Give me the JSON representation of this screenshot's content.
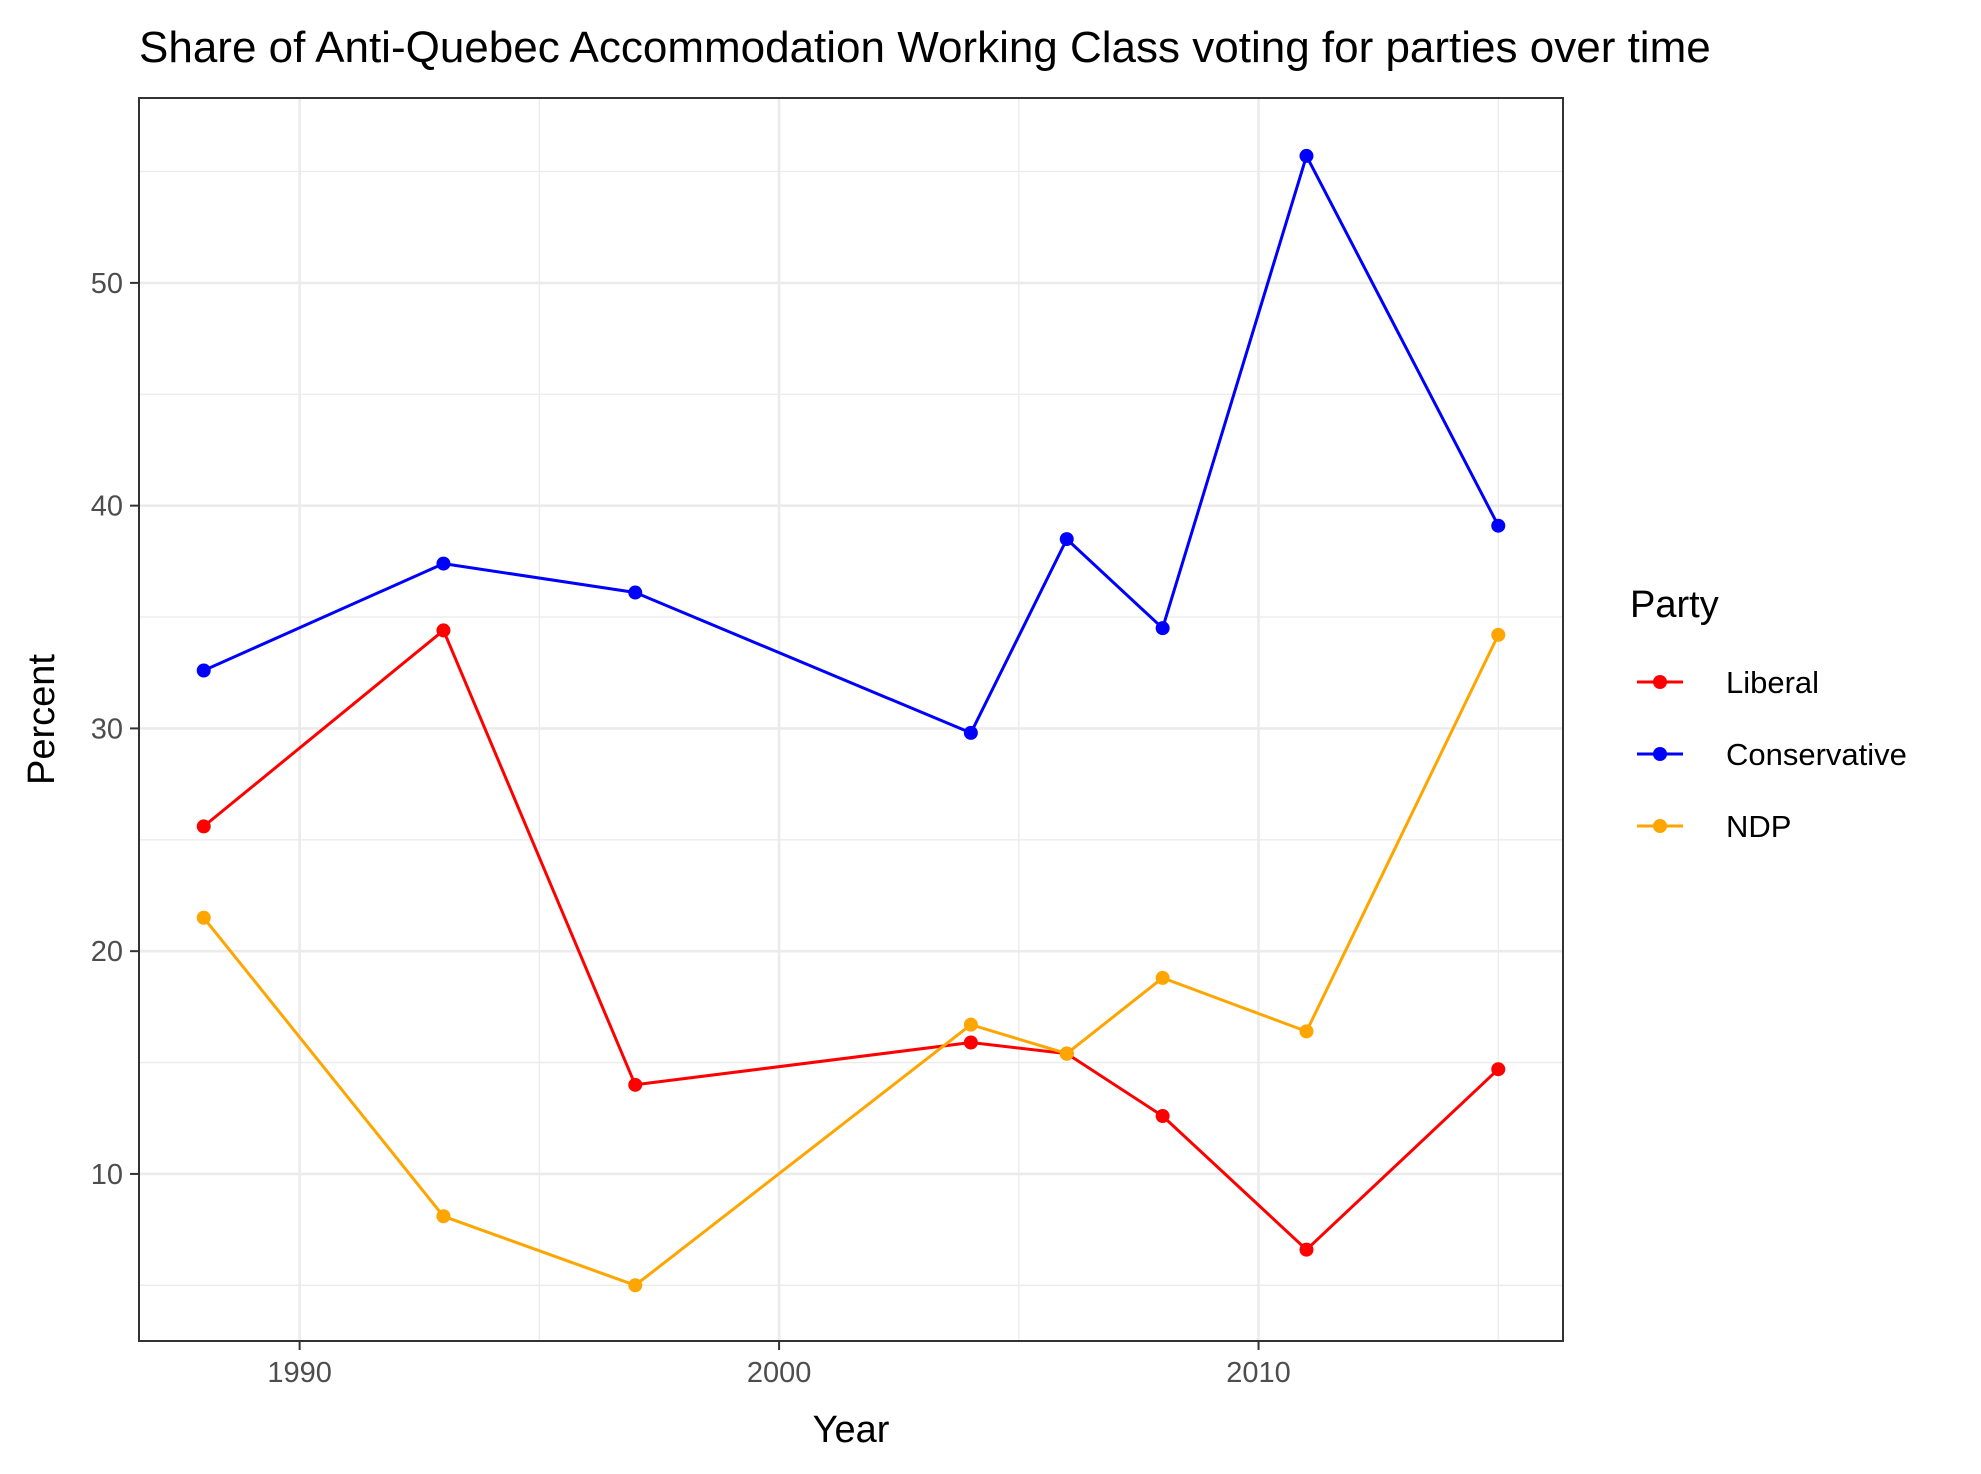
{
  "chart_data": {
    "type": "line",
    "title": "Share of Anti-Quebec Accommodation Working Class voting for parties over time",
    "xlabel": "Year",
    "ylabel": "Percent",
    "x": [
      1988,
      1993,
      1997,
      2004,
      2006,
      2008,
      2011,
      2015
    ],
    "xlim": [
      1986.65,
      2016.35
    ],
    "ylim": [
      2.5,
      58.3
    ],
    "x_ticks": [
      1990,
      2000,
      2010
    ],
    "x_tick_labels": [
      "1990",
      "2000",
      "2010"
    ],
    "y_ticks": [
      10,
      20,
      30,
      40,
      50
    ],
    "y_tick_labels": [
      "10",
      "20",
      "30",
      "40",
      "50"
    ],
    "grid": true,
    "legend": {
      "title": "Party",
      "placement": "right"
    },
    "series": [
      {
        "name": "Liberal",
        "color": "#ff0000",
        "values": [
          25.6,
          34.4,
          14.0,
          15.9,
          15.4,
          12.6,
          6.6,
          14.7
        ]
      },
      {
        "name": "Conservative",
        "color": "#0000ff",
        "values": [
          32.6,
          37.4,
          36.1,
          29.8,
          38.5,
          34.5,
          55.7,
          39.1
        ]
      },
      {
        "name": "NDP",
        "color": "#ffa500",
        "values": [
          21.5,
          8.1,
          5.0,
          16.7,
          15.4,
          18.8,
          16.4,
          34.2
        ]
      }
    ]
  }
}
